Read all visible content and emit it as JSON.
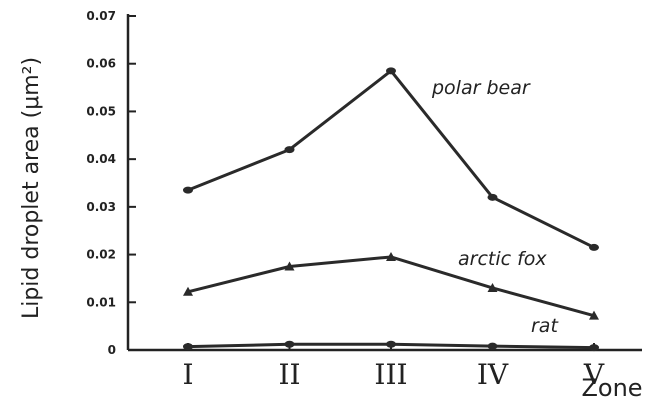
{
  "chart_data": {
    "type": "line",
    "xlabel": "Zone",
    "ylabel": "Lipid droplet area (μm²)",
    "categories": [
      "I",
      "II",
      "III",
      "IV",
      "V"
    ],
    "ylim": [
      0,
      0.07
    ],
    "yticks": [
      0,
      0.01,
      0.02,
      0.03,
      0.04,
      0.05,
      0.06,
      0.07
    ],
    "yticklabels": [
      "0",
      "0.01",
      "0.02",
      "0.03",
      "0.04",
      "0.05",
      "0.06",
      "0.07"
    ],
    "grid": false,
    "legend": "none (series labeled directly on chart)",
    "series": [
      {
        "name": "polar bear",
        "values": [
          0.0335,
          0.042,
          0.0585,
          0.032,
          0.0215
        ],
        "marker": "circle"
      },
      {
        "name": "arctic fox",
        "values": [
          0.0122,
          0.0175,
          0.0195,
          0.013,
          0.0072
        ],
        "marker": "triangle"
      },
      {
        "name": "rat",
        "values": [
          0.0007,
          0.0012,
          0.0012,
          0.0008,
          0.0005
        ],
        "marker": "circle"
      }
    ],
    "colors": {
      "line": "#2a2a2a",
      "axis": "#222222"
    }
  }
}
